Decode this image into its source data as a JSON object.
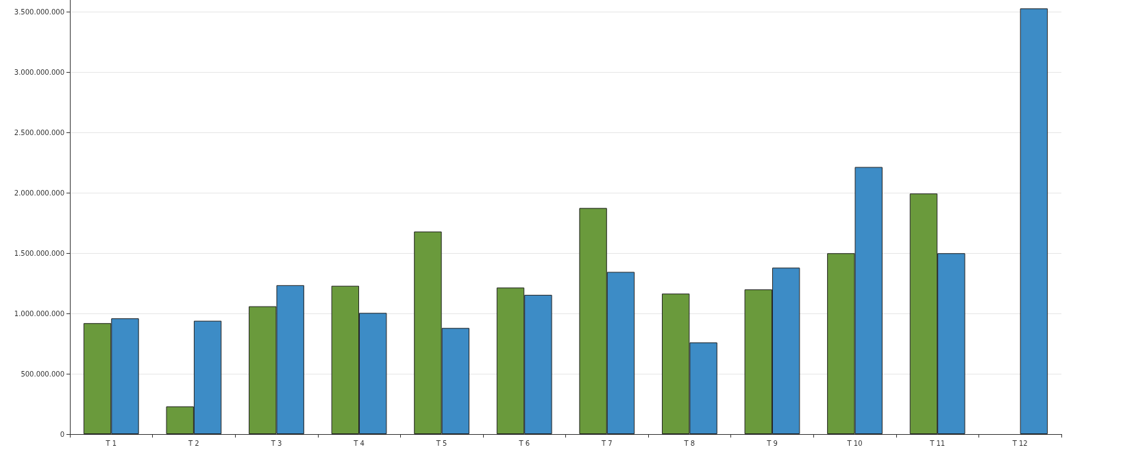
{
  "chart_data": {
    "type": "bar",
    "categories": [
      "T 1",
      "T 2",
      "T 3",
      "T 4",
      "T 5",
      "T 6",
      "T 7",
      "T 8",
      "T 9",
      "T 10",
      "T 11",
      "T 12"
    ],
    "series": [
      {
        "color": "#6a9a3c",
        "values": [
          920000000,
          230000000,
          1060000000,
          1230000000,
          1680000000,
          1215000000,
          1875000000,
          1165000000,
          1200000000,
          1500000000,
          1995000000,
          null
        ]
      },
      {
        "color": "#3d8cc6",
        "values": [
          960000000,
          940000000,
          1235000000,
          1005000000,
          880000000,
          1155000000,
          1345000000,
          760000000,
          1380000000,
          2215000000,
          1500000000,
          3530000000
        ]
      }
    ],
    "ylim": [
      0,
      3600000000
    ],
    "yticks": [
      {
        "value": 0,
        "label": "0"
      },
      {
        "value": 500000000,
        "label": "500.000.000"
      },
      {
        "value": 1000000000,
        "label": "1.000.000.000"
      },
      {
        "value": 1500000000,
        "label": "1.500.000.000"
      },
      {
        "value": 2000000000,
        "label": "2.000.000.000"
      },
      {
        "value": 2500000000,
        "label": "2.500.000.000"
      },
      {
        "value": 3000000000,
        "label": "3.000.000.000"
      },
      {
        "value": 3500000000,
        "label": "3.500.000.000"
      }
    ],
    "grid": "y"
  }
}
